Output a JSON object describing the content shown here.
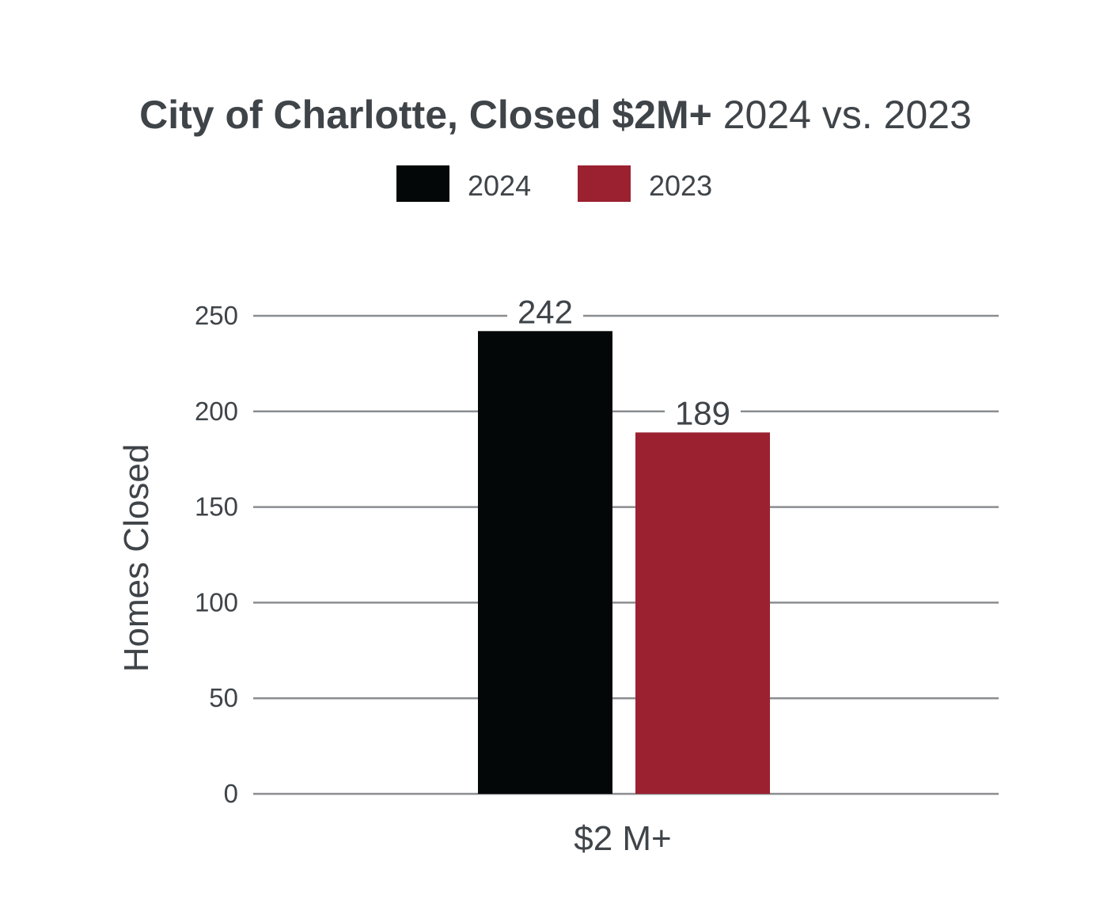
{
  "chart_data": {
    "type": "bar",
    "title_bold": "City of Charlotte, Closed $2M+",
    "title_normal": "2024 vs. 2023",
    "categories": [
      "$2 M+"
    ],
    "series": [
      {
        "name": "2024",
        "values": [
          242
        ],
        "color": "#030707"
      },
      {
        "name": "2023",
        "values": [
          189
        ],
        "color": "#9b2131"
      }
    ],
    "data_labels": [
      "242",
      "189"
    ],
    "xlabel": "",
    "ylabel": "Homes Closed",
    "ylim": [
      0,
      250
    ],
    "yticks": [
      0,
      50,
      100,
      150,
      200,
      250
    ],
    "grid": true,
    "legend_position": "top-center"
  },
  "colors": {
    "text": "#3f4449",
    "gridline": "#8a8d90",
    "background": "#ffffff"
  }
}
